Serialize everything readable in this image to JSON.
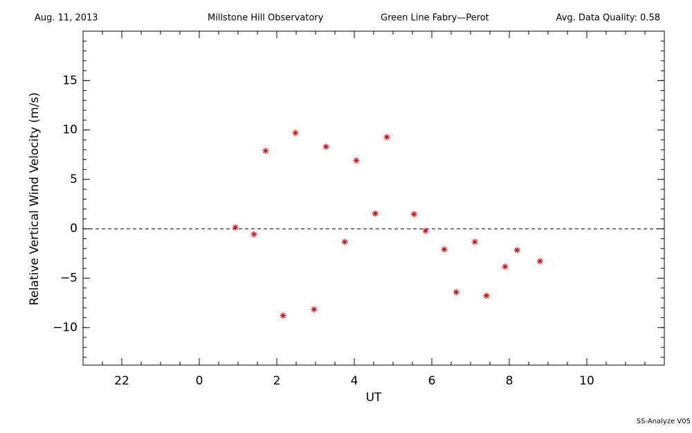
{
  "chart_data": {
    "type": "scatter",
    "header": [
      "Aug. 11, 2013",
      "Millstone Hill Observatory",
      "Green Line Fabry—Perot",
      "Avg. Data Quality: 0.58"
    ],
    "footer": "SS-Analyze V05",
    "x_label": "UT",
    "y_label": "Relative Vertical Wind Velocity (m/s)",
    "xlim": [
      -3,
      12
    ],
    "ylim": [
      -13.8,
      20
    ],
    "xticks": [
      {
        "value": -2,
        "label": "22"
      },
      0,
      2,
      4,
      6,
      8,
      10
    ],
    "yticks": [
      {
        "value": -10,
        "label": "−10"
      },
      {
        "value": -5,
        "label": "−5"
      },
      0,
      5,
      10,
      15
    ],
    "x_minor_step": 0.5,
    "y_minor_step": 1,
    "reference_line": 0,
    "series": [
      {
        "color": "#e00000",
        "x": [
          0.93,
          1.41,
          1.71,
          2.16,
          2.48,
          2.96,
          3.27,
          3.75,
          4.05,
          4.54,
          4.84,
          5.54,
          5.84,
          6.32,
          6.63,
          7.11,
          7.41,
          7.89,
          8.2,
          8.79
        ],
        "values": [
          0.14,
          -0.56,
          7.89,
          -8.79,
          9.7,
          -8.16,
          8.3,
          -1.33,
          6.91,
          1.54,
          9.28,
          1.47,
          -0.21,
          -2.09,
          -6.42,
          -1.33,
          -6.77,
          -3.84,
          -2.16,
          -3.28
        ]
      }
    ]
  }
}
